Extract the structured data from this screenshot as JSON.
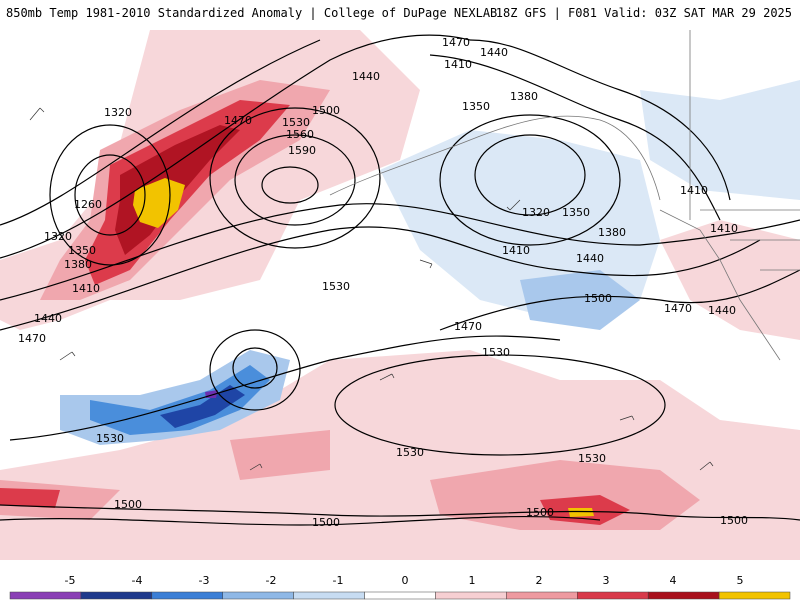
{
  "header": {
    "title_left": "850mb Temp 1981-2010 Standardized Anomaly | College of DuPage NEXLAB",
    "title_right": "18Z GFS | F081 Valid: 03Z SAT MAR 29 2025"
  },
  "contour_labels": [
    "1470",
    "1440",
    "1410",
    "1380",
    "1350",
    "1320",
    "1260",
    "1500",
    "1530",
    "1560",
    "1590"
  ],
  "map_labels": [
    {
      "text": "1470"
    },
    {
      "text": "1440"
    },
    {
      "text": "1440"
    },
    {
      "text": "1410"
    },
    {
      "text": "1380"
    },
    {
      "text": "1350"
    },
    {
      "text": "1320"
    },
    {
      "text": "1260"
    },
    {
      "text": "1320"
    },
    {
      "text": "1350"
    },
    {
      "text": "1380"
    },
    {
      "text": "1410"
    },
    {
      "text": "1440"
    },
    {
      "text": "1470"
    },
    {
      "text": "1470"
    },
    {
      "text": "1500"
    },
    {
      "text": "1530"
    },
    {
      "text": "1560"
    },
    {
      "text": "1590"
    },
    {
      "text": "1530"
    },
    {
      "text": "1320"
    },
    {
      "text": "1350"
    },
    {
      "text": "1380"
    },
    {
      "text": "1410"
    },
    {
      "text": "1440"
    },
    {
      "text": "1410"
    },
    {
      "text": "1410"
    },
    {
      "text": "1470"
    },
    {
      "text": "1500"
    },
    {
      "text": "1470"
    },
    {
      "text": "1440"
    },
    {
      "text": "1530"
    },
    {
      "text": "1530"
    },
    {
      "text": "1530"
    },
    {
      "text": "1530"
    },
    {
      "text": "1500"
    },
    {
      "text": "1500"
    },
    {
      "text": "1500"
    },
    {
      "text": "1500"
    }
  ],
  "legend": {
    "ticks": [
      "-5",
      "-4",
      "-3",
      "-2",
      "-1",
      "0",
      "1",
      "2",
      "3",
      "4",
      "5"
    ],
    "colors": [
      "#8a3fb5",
      "#1f3a8c",
      "#3c7fd6",
      "#8fb8e6",
      "#c7dcf2",
      "#ffffff",
      "#f6cfd2",
      "#ee9aa0",
      "#d83a4a",
      "#a8101c",
      "#f2c300"
    ]
  },
  "palette": {
    "warm1": "#f7d7da",
    "warm2": "#f0a7ae",
    "warm3": "#dc3b4b",
    "warm4": "#b01423",
    "warm5": "#f2c300",
    "cool1": "#dbe8f6",
    "cool2": "#a9c8ec",
    "cool3": "#4a8edb",
    "cool4": "#1f45a6",
    "cool5": "#6b2fb0"
  }
}
